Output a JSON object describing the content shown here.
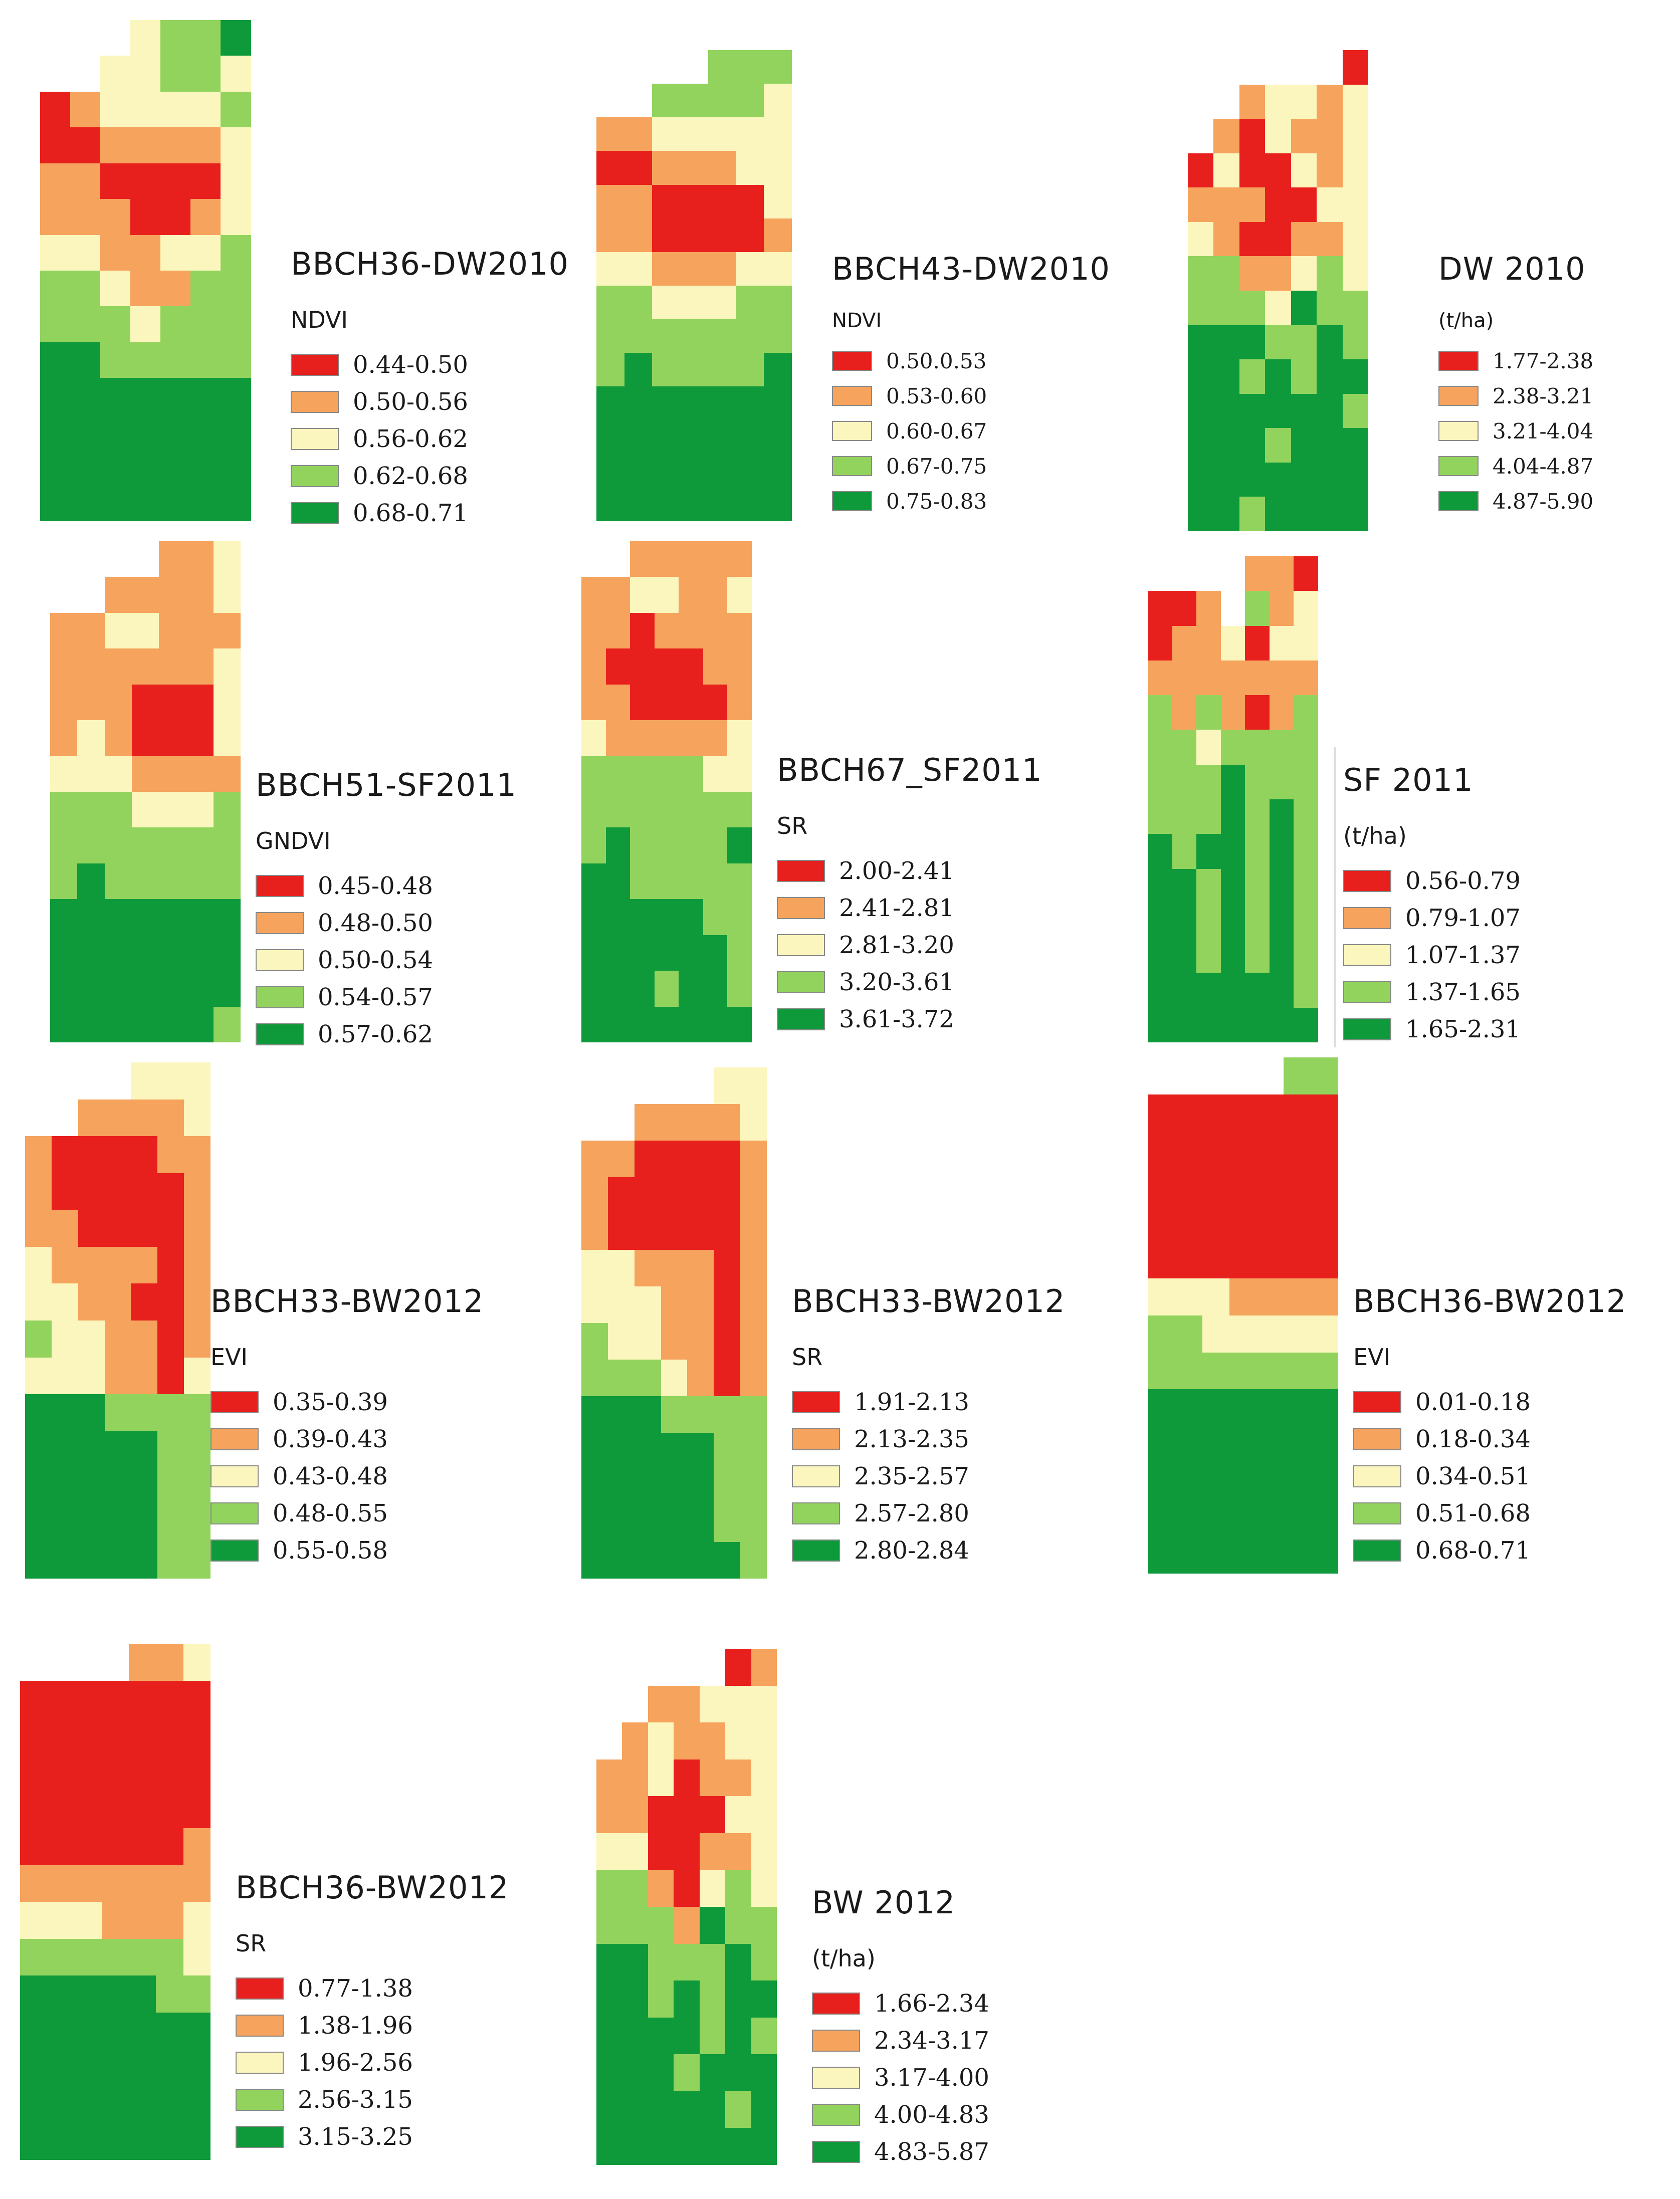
{
  "panels": [
    {
      "title": "BBCH36-DW2010",
      "unit": "NDVI",
      "palette": [
        "#e8201d",
        "#f5a35d",
        "#fbf6bd",
        "#92d35e",
        "#0e9a3b"
      ],
      "classes": [
        "0.44-0.50",
        "0.50-0.56",
        "0.56-0.62",
        "0.62-0.68",
        "0.68-0.71"
      ]
    },
    {
      "title": "BBCH43-DW2010",
      "unit": "NDVI",
      "classes": [
        "0.50.0.53",
        "0.53-0.60",
        "0.60-0.67",
        "0.67-0.75",
        "0.75-0.83"
      ]
    },
    {
      "title": "DW 2010",
      "unit": "(t/ha)",
      "classes": [
        "1.77-2.38",
        "2.38-3.21",
        "3.21-4.04",
        "4.04-4.87",
        "4.87-5.90"
      ]
    },
    {
      "title": "BBCH51-SF2011",
      "unit": "GNDVI",
      "classes": [
        "0.45-0.48",
        "0.48-0.50",
        "0.50-0.54",
        "0.54-0.57",
        "0.57-0.62"
      ]
    },
    {
      "title": "BBCH67_SF2011",
      "unit": "SR",
      "classes": [
        "2.00-2.41",
        "2.41-2.81",
        "2.81-3.20",
        "3.20-3.61",
        "3.61-3.72"
      ]
    },
    {
      "title": "SF 2011",
      "unit": "(t/ha)",
      "classes": [
        "0.56-0.79",
        "0.79-1.07",
        "1.07-1.37",
        "1.37-1.65",
        "1.65-2.31"
      ]
    },
    {
      "title": "BBCH33-BW2012",
      "unit": "EVI",
      "classes": [
        "0.35-0.39",
        "0.39-0.43",
        "0.43-0.48",
        "0.48-0.55",
        "0.55-0.58"
      ]
    },
    {
      "title": "BBCH33-BW2012",
      "unit": "SR",
      "classes": [
        "1.91-2.13",
        "2.13-2.35",
        "2.35-2.57",
        "2.57-2.80",
        "2.80-2.84"
      ]
    },
    {
      "title": "BBCH36-BW2012",
      "unit": "EVI",
      "classes": [
        "0.01-0.18",
        "0.18-0.34",
        "0.34-0.51",
        "0.51-0.68",
        "0.68-0.71"
      ]
    },
    {
      "title": "BBCH36-BW2012",
      "unit": "SR",
      "classes": [
        "0.77-1.38",
        "1.38-1.96",
        "1.96-2.56",
        "2.56-3.15",
        "3.15-3.25"
      ]
    },
    {
      "title": "BW 2012",
      "unit": "(t/ha)",
      "classes": [
        "1.66-2.34",
        "2.34-3.17",
        "3.17-4.00",
        "4.00-4.83",
        "4.83-5.87"
      ]
    }
  ],
  "palette": [
    "#e8201d",
    "#f5a35d",
    "#fbf6bd",
    "#92d35e",
    "#0e9a3b"
  ]
}
